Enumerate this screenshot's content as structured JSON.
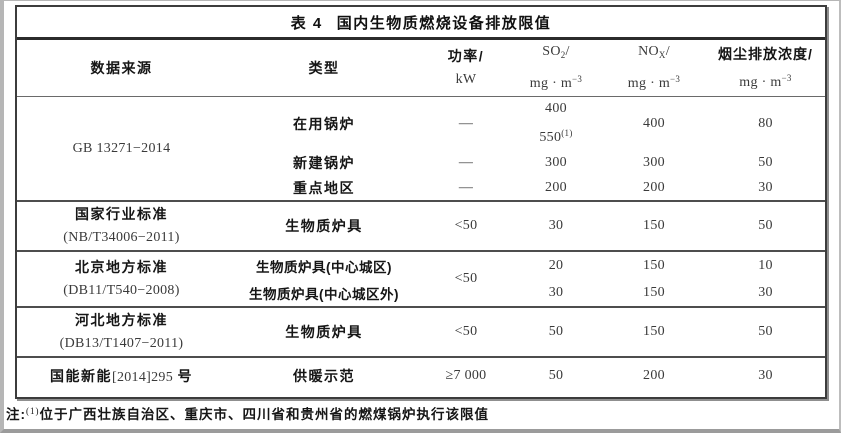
{
  "title": {
    "prefix": "表 4",
    "text": "国内生物质燃烧设备排放限值"
  },
  "header": {
    "source": "数据来源",
    "type": "类型",
    "power_name": "功率/",
    "power_unit": "kW",
    "so2_base": "SO",
    "so2_sub": "2",
    "so2_slash": "/",
    "nox_base": "NO",
    "nox_sub": "X",
    "nox_slash": "/",
    "dust_name": "烟尘排放浓度/",
    "unit_base": "mg · m",
    "unit_sup": "−3"
  },
  "rows": {
    "gb": {
      "source": "GB 13271−2014",
      "r1": {
        "type": "在用锅炉",
        "power": "—",
        "so2_a": "400",
        "so2_b": "550",
        "so2_b_sup": "(1)",
        "nox": "400",
        "dust": "80"
      },
      "r2": {
        "type": "新建锅炉",
        "power": "—",
        "so2": "300",
        "nox": "300",
        "dust": "50"
      },
      "r3": {
        "type": "重点地区",
        "power": "—",
        "so2": "200",
        "nox": "200",
        "dust": "30"
      }
    },
    "nb": {
      "source_l1": "国家行业标准",
      "source_l2": "(NB/T34006−2011)",
      "type": "生物质炉具",
      "power": "<50",
      "so2": "30",
      "nox": "150",
      "dust": "50"
    },
    "bj": {
      "source_l1": "北京地方标准",
      "source_l2": "(DB11/T540−2008)",
      "power": "<50",
      "r1": {
        "type": "生物质炉具(中心城区)",
        "so2": "20",
        "nox": "150",
        "dust": "10"
      },
      "r2": {
        "type": "生物质炉具(中心城区外)",
        "so2": "30",
        "nox": "150",
        "dust": "30"
      }
    },
    "hb": {
      "source_l1": "河北地方标准",
      "source_l2": "(DB13/T1407−2011)",
      "type": "生物质炉具",
      "power": "<50",
      "so2": "50",
      "nox": "150",
      "dust": "50"
    },
    "gn": {
      "source_cn1": "国能新能",
      "source_num": "[2014]295",
      "source_cn2": "号",
      "type": "供暖示范",
      "power": "≥7 000",
      "so2": "50",
      "nox": "200",
      "dust": "30"
    }
  },
  "note": {
    "label": "注:",
    "sup": "(1)",
    "text": "位于广西壮族自治区、重庆市、四川省和贵州省的燃煤锅炉执行该限值"
  }
}
